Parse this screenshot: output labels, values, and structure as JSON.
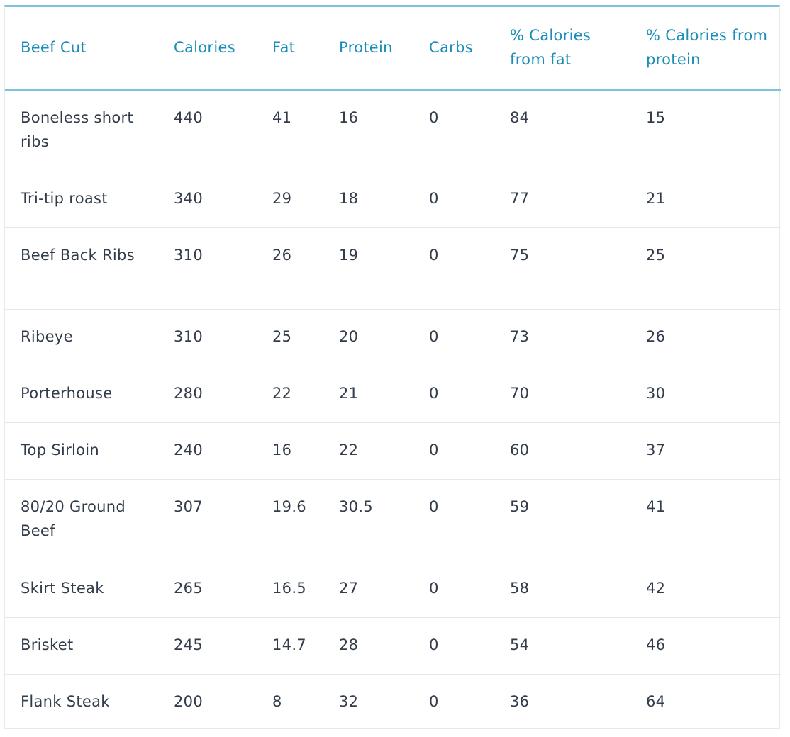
{
  "table": {
    "headers": [
      "Beef Cut",
      "Calories",
      "Fat",
      "Protein",
      "Carbs",
      "% Calories from fat",
      "% Calories from protein"
    ],
    "rows": [
      [
        "Boneless short ribs",
        "440",
        "41",
        "16",
        "0",
        "84",
        "15"
      ],
      [
        "Tri-tip roast",
        "340",
        "29",
        "18",
        "0",
        "77",
        "21"
      ],
      [
        "Beef Back Ribs",
        "310",
        "26",
        "19",
        "0",
        "75",
        "25"
      ],
      [
        "Ribeye",
        "310",
        "25",
        "20",
        "0",
        "73",
        "26"
      ],
      [
        "Porterhouse",
        "280",
        "22",
        "21",
        "0",
        "70",
        "30"
      ],
      [
        "Top Sirloin",
        "240",
        "16",
        "22",
        "0",
        "60",
        "37"
      ],
      [
        "80/20 Ground Beef",
        "307",
        "19.6",
        "30.5",
        "0",
        "59",
        "41"
      ],
      [
        "Skirt Steak",
        "265",
        "16.5",
        "27",
        "0",
        "58",
        "42"
      ],
      [
        "Brisket",
        "245",
        "14.7",
        "28",
        "0",
        "54",
        "46"
      ],
      [
        "Flank Steak",
        "200",
        "8",
        "32",
        "0",
        "36",
        "64"
      ]
    ]
  }
}
